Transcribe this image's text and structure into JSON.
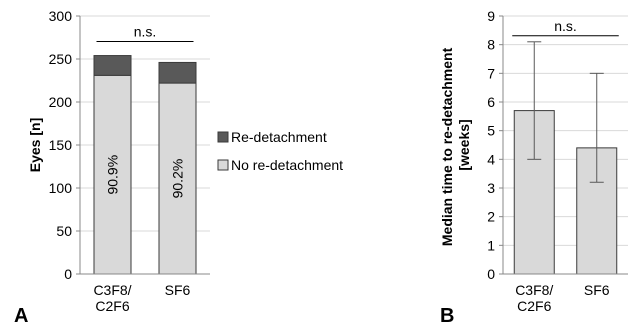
{
  "colors": {
    "no_redetachment": "#d9d9d9",
    "redetachment": "#595959",
    "bar_stroke": "#3a3a3a",
    "grid": "#d9d9d9",
    "axis": "#888888",
    "error_bar": "#595959"
  },
  "chart_data": [
    {
      "panel": "A",
      "type": "bar",
      "stacked": true,
      "categories": [
        [
          "C3F8/",
          "C2F6"
        ],
        [
          "SF6"
        ]
      ],
      "series": [
        {
          "name": "No re-detachment",
          "values": [
            231,
            222
          ],
          "color_key": "no_redetachment"
        },
        {
          "name": "Re-detachment",
          "values": [
            23,
            24
          ],
          "color_key": "redetachment"
        }
      ],
      "bar_labels": [
        "90.9%",
        "90.2%"
      ],
      "significance": "n.s.",
      "ylabel": "Eyes [n]",
      "xlabel": "",
      "ylim": [
        0,
        300
      ],
      "yticks": [
        0,
        50,
        100,
        150,
        200,
        250,
        300
      ],
      "grid": true,
      "legend": "right",
      "legend_order": [
        "Re-detachment",
        "No re-detachment"
      ]
    },
    {
      "panel": "B",
      "type": "bar",
      "categories": [
        [
          "C3F8/",
          "C2F6"
        ],
        [
          "SF6"
        ]
      ],
      "values": [
        5.7,
        4.4
      ],
      "error_low": [
        4.0,
        3.2
      ],
      "error_high": [
        8.1,
        7.0
      ],
      "significance": "n.s.",
      "ylabel": [
        "Median time to re-detachment",
        "[weeks]"
      ],
      "xlabel": "",
      "ylim": [
        0,
        9
      ],
      "yticks": [
        0,
        1,
        2,
        3,
        4,
        5,
        6,
        7,
        8,
        9
      ],
      "grid": true
    }
  ]
}
